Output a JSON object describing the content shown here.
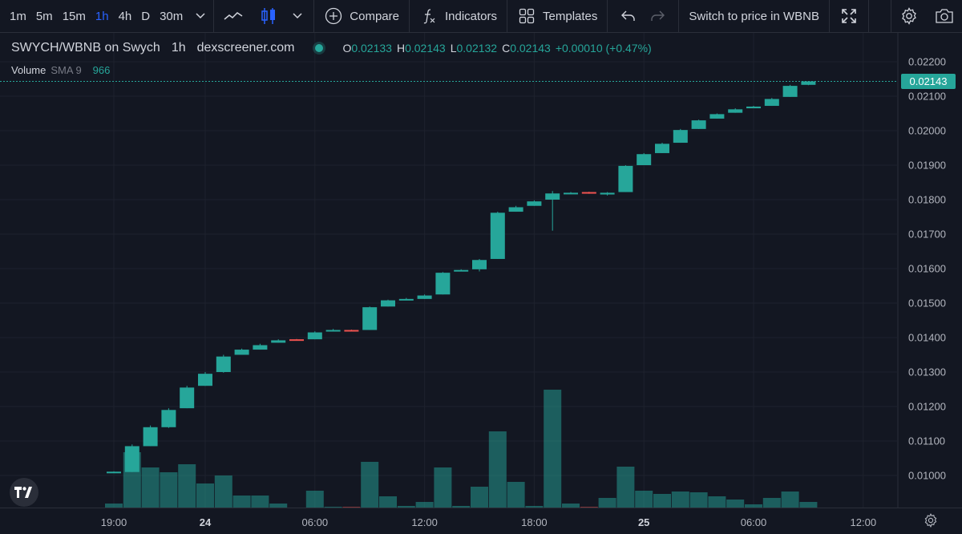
{
  "toolbar": {
    "timeframes": [
      "1m",
      "5m",
      "15m",
      "1h",
      "4h",
      "D",
      "30m"
    ],
    "active_timeframe": "1h",
    "compare_label": "Compare",
    "indicators_label": "Indicators",
    "templates_label": "Templates",
    "switch_label": "Switch to price in WBNB"
  },
  "legend": {
    "symbol": "SWYCH/WBNB on Swych",
    "interval": "1h",
    "source": "dexscreener.com",
    "open_key": "O",
    "open": "0.02133",
    "high_key": "H",
    "high": "0.02143",
    "low_key": "L",
    "low": "0.02132",
    "close_key": "C",
    "close": "0.02143",
    "change": "+0.00010 (+0.47%)"
  },
  "volume_legend": {
    "name": "Volume",
    "sma": "SMA 9",
    "value": "966"
  },
  "last_price": "0.02143",
  "colors": {
    "up": "#26a69a",
    "down": "#ef5350",
    "background": "#131722",
    "grid": "#2a2e39",
    "accent": "#2962ff"
  },
  "chart_data": {
    "type": "candlestick",
    "price_axis": {
      "ticks": [
        "0.02200",
        "0.02100",
        "0.02000",
        "0.01900",
        "0.01800",
        "0.01700",
        "0.01600",
        "0.01500",
        "0.01400",
        "0.01300",
        "0.01200",
        "0.01100",
        "0.01000"
      ],
      "range": [
        0.00925,
        0.02235
      ]
    },
    "time_axis": {
      "ticks": [
        {
          "label": "19:00",
          "hour": 0,
          "bold": false
        },
        {
          "label": "24",
          "hour": 5,
          "bold": true
        },
        {
          "label": "06:00",
          "hour": 11,
          "bold": false
        },
        {
          "label": "12:00",
          "hour": 17,
          "bold": false
        },
        {
          "label": "18:00",
          "hour": 23,
          "bold": false
        },
        {
          "label": "25",
          "hour": 29,
          "bold": true
        },
        {
          "label": "06:00",
          "hour": 35,
          "bold": false
        },
        {
          "label": "12:00",
          "hour": 41,
          "bold": false
        }
      ]
    },
    "candles": [
      {
        "o": 0.0101,
        "h": 0.01012,
        "l": 0.01008,
        "c": 0.01011,
        "v": 8
      },
      {
        "o": 0.0101,
        "h": 0.0109,
        "l": 0.0101,
        "c": 0.01085,
        "v": 72
      },
      {
        "o": 0.01085,
        "h": 0.01145,
        "l": 0.01085,
        "c": 0.0114,
        "v": 53
      },
      {
        "o": 0.0114,
        "h": 0.01195,
        "l": 0.01138,
        "c": 0.0119,
        "v": 47
      },
      {
        "o": 0.01195,
        "h": 0.0126,
        "l": 0.01195,
        "c": 0.01255,
        "v": 57
      },
      {
        "o": 0.0126,
        "h": 0.013,
        "l": 0.0126,
        "c": 0.01295,
        "v": 33
      },
      {
        "o": 0.013,
        "h": 0.0135,
        "l": 0.01298,
        "c": 0.01345,
        "v": 43
      },
      {
        "o": 0.0135,
        "h": 0.01368,
        "l": 0.0135,
        "c": 0.01365,
        "v": 18
      },
      {
        "o": 0.01365,
        "h": 0.01382,
        "l": 0.01365,
        "c": 0.01378,
        "v": 18
      },
      {
        "o": 0.01385,
        "h": 0.01395,
        "l": 0.01385,
        "c": 0.01392,
        "v": 8
      },
      {
        "o": 0.01395,
        "h": 0.01396,
        "l": 0.01392,
        "c": 0.01393,
        "v": 2
      },
      {
        "o": 0.01395,
        "h": 0.01418,
        "l": 0.01395,
        "c": 0.01415,
        "v": 24
      },
      {
        "o": 0.01418,
        "h": 0.01425,
        "l": 0.01418,
        "c": 0.01422,
        "v": 4
      },
      {
        "o": 0.01422,
        "h": 0.01423,
        "l": 0.01418,
        "c": 0.0142,
        "v": 4
      },
      {
        "o": 0.01422,
        "h": 0.0149,
        "l": 0.01422,
        "c": 0.01488,
        "v": 60
      },
      {
        "o": 0.0149,
        "h": 0.0151,
        "l": 0.0149,
        "c": 0.01508,
        "v": 17
      },
      {
        "o": 0.0151,
        "h": 0.01515,
        "l": 0.01508,
        "c": 0.01512,
        "v": 5
      },
      {
        "o": 0.01512,
        "h": 0.01525,
        "l": 0.01512,
        "c": 0.01522,
        "v": 10
      },
      {
        "o": 0.01525,
        "h": 0.0159,
        "l": 0.01525,
        "c": 0.01588,
        "v": 53
      },
      {
        "o": 0.01592,
        "h": 0.01598,
        "l": 0.01592,
        "c": 0.01596,
        "v": 5
      },
      {
        "o": 0.01598,
        "h": 0.01628,
        "l": 0.01592,
        "c": 0.01625,
        "v": 29
      },
      {
        "o": 0.01628,
        "h": 0.01765,
        "l": 0.01628,
        "c": 0.01762,
        "v": 98
      },
      {
        "o": 0.01765,
        "h": 0.01782,
        "l": 0.01765,
        "c": 0.01778,
        "v": 35
      },
      {
        "o": 0.01782,
        "h": 0.01798,
        "l": 0.01782,
        "c": 0.01795,
        "v": 5
      },
      {
        "o": 0.018,
        "h": 0.01825,
        "l": 0.0171,
        "c": 0.01818,
        "v": 150
      },
      {
        "o": 0.01818,
        "h": 0.01822,
        "l": 0.01816,
        "c": 0.0182,
        "v": 8
      },
      {
        "o": 0.01822,
        "h": 0.01823,
        "l": 0.01817,
        "c": 0.01818,
        "v": 4
      },
      {
        "o": 0.01815,
        "h": 0.01822,
        "l": 0.01812,
        "c": 0.0182,
        "v": 15
      },
      {
        "o": 0.01822,
        "h": 0.019,
        "l": 0.01822,
        "c": 0.01898,
        "v": 54
      },
      {
        "o": 0.019,
        "h": 0.01935,
        "l": 0.019,
        "c": 0.01932,
        "v": 24
      },
      {
        "o": 0.01935,
        "h": 0.01965,
        "l": 0.01935,
        "c": 0.01962,
        "v": 20
      },
      {
        "o": 0.01965,
        "h": 0.02005,
        "l": 0.01965,
        "c": 0.02002,
        "v": 23
      },
      {
        "o": 0.02005,
        "h": 0.02032,
        "l": 0.02005,
        "c": 0.0203,
        "v": 22
      },
      {
        "o": 0.02035,
        "h": 0.0205,
        "l": 0.02035,
        "c": 0.02048,
        "v": 17
      },
      {
        "o": 0.02052,
        "h": 0.02065,
        "l": 0.02052,
        "c": 0.02062,
        "v": 13
      },
      {
        "o": 0.02065,
        "h": 0.02072,
        "l": 0.02065,
        "c": 0.0207,
        "v": 7
      },
      {
        "o": 0.02072,
        "h": 0.02095,
        "l": 0.02072,
        "c": 0.02092,
        "v": 15
      },
      {
        "o": 0.02098,
        "h": 0.02133,
        "l": 0.02098,
        "c": 0.0213,
        "v": 23
      },
      {
        "o": 0.02133,
        "h": 0.02143,
        "l": 0.02132,
        "c": 0.02143,
        "v": 10
      }
    ]
  }
}
